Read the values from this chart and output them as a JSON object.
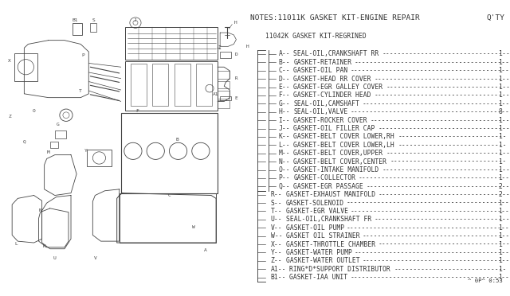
{
  "title": "NOTES:11011K GASKET KIT-ENGINE REPAIR",
  "qty_label": "Q'TY",
  "subtitle": "11042K GASKET KIT-REGRINED",
  "background_color": "#ffffff",
  "text_color": "#333333",
  "font_family": "monospace",
  "title_fontsize": 6.8,
  "body_fontsize": 5.8,
  "footer": "^ 0P^ 0:53",
  "parts": [
    [
      "A",
      "SEAL-OIL,CRANKSHAFT RR",
      "1"
    ],
    [
      "B",
      "GASKET-RETAINER",
      "1"
    ],
    [
      "C",
      "GASKET-OIL PAN",
      "1"
    ],
    [
      "D",
      "GASKET-HEAD RR COVER",
      "1"
    ],
    [
      "E",
      "GASKET-EGR GALLEY COVER",
      "1"
    ],
    [
      "F",
      "GASKET-CYLINDER HEAD",
      "1"
    ],
    [
      "G",
      "SEAL-OIL,CAMSHAFT",
      "1"
    ],
    [
      "H",
      "SEAL-OIL,VALVE",
      "8"
    ],
    [
      "I",
      "GASKET-ROCKER COVER",
      "1"
    ],
    [
      "J",
      "GASKET-OIL FILLER CAP",
      "1"
    ],
    [
      "K",
      "GASKET-BELT COVER LOWER,RH",
      "1"
    ],
    [
      "L",
      "GASKET-BELT COVER LOWER,LH",
      "1"
    ],
    [
      "M",
      "GASKET-BELT COVER,UPPER",
      "1"
    ],
    [
      "N",
      "GASKET-BELT COVER,CENTER",
      "1"
    ],
    [
      "O",
      "GASKET-INTAKE MANIFOLD",
      "1"
    ],
    [
      "P",
      "GASKET-COLLECTOR",
      "1"
    ],
    [
      "Q",
      "GASKET-EGR PASSAGE",
      "2"
    ],
    [
      "R",
      "GASKET-EXHAUST MANIFOLD",
      "2"
    ],
    [
      "S",
      "GASKET-SOLENOID",
      "1"
    ],
    [
      "T",
      "GASKET-EGR VALVE",
      "1"
    ],
    [
      "U",
      "SEAL-OIL,CRANKSHAFT FR",
      "1"
    ],
    [
      "V",
      "GASKET-OIL PUMP",
      "1"
    ],
    [
      "W",
      "GASKET OIL STRAINER",
      "1"
    ],
    [
      "X",
      "GASKET-THROTTLE CHAMBER",
      "1"
    ],
    [
      "Y",
      "GASKET-WATER PUMP",
      "1"
    ],
    [
      "Z",
      "GASKET-WATER OUTLET",
      "1"
    ],
    [
      "A1",
      "RING*D*SUPPORT DISTRIBUTOR",
      "1"
    ],
    [
      "B1",
      "GASKET-IAA UNIT",
      "1"
    ]
  ]
}
